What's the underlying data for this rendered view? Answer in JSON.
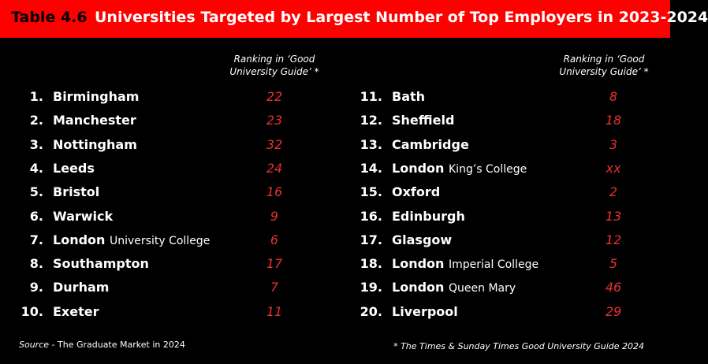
{
  "title": {
    "label": "Table 4.6",
    "text": "Universities Targeted by Largest Number of Top Employers in 2023-2024"
  },
  "columns": [
    {
      "header": [
        "Ranking in ‘Good",
        "University Guide’ *"
      ],
      "rows": [
        {
          "rank": "1.",
          "name": "Birmingham",
          "ranking": 22
        },
        {
          "rank": "2.",
          "name": "Manchester",
          "ranking": 23
        },
        {
          "rank": "3.",
          "name": "Nottingham",
          "ranking": 32
        },
        {
          "rank": "4.",
          "name": "Leeds",
          "ranking": 24
        },
        {
          "rank": "5.",
          "name": "Bristol",
          "ranking": 16
        },
        {
          "rank": "6.",
          "name": "Warwick",
          "ranking": 9
        },
        {
          "rank": "7.",
          "name": "London",
          "detail": "University College",
          "ranking": 6
        },
        {
          "rank": "8.",
          "name": "Southampton",
          "ranking": 17
        },
        {
          "rank": "9.",
          "name": "Durham",
          "ranking": 7
        },
        {
          "rank": "10.",
          "name": "Exeter",
          "ranking": 11
        }
      ]
    },
    {
      "header": [
        "Ranking in ‘Good",
        "University Guide’ *"
      ],
      "rows": [
        {
          "rank": "11.",
          "name": "Bath",
          "ranking": 8
        },
        {
          "rank": "12.",
          "name": "Sheffield",
          "ranking": 18
        },
        {
          "rank": "13.",
          "name": "Cambridge",
          "ranking": 3
        },
        {
          "rank": "14.",
          "name": "London",
          "detail": "King’s College",
          "ranking": "xx"
        },
        {
          "rank": "15.",
          "name": "Oxford",
          "ranking": 2
        },
        {
          "rank": "16.",
          "name": "Edinburgh",
          "ranking": 13
        },
        {
          "rank": "17.",
          "name": "Glasgow",
          "ranking": 12
        },
        {
          "rank": "18.",
          "name": "London",
          "detail": "Imperial College",
          "ranking": 5
        },
        {
          "rank": "19.",
          "name": "London",
          "detail": "Queen Mary",
          "ranking": 46
        },
        {
          "rank": "20.",
          "name": "Liverpool",
          "ranking": 29
        }
      ]
    }
  ],
  "footer": {
    "source_label": "Source",
    "source_text": "- The Graduate Market in 2024",
    "note": "* The Times & Sunday Times Good University Guide 2024"
  }
}
